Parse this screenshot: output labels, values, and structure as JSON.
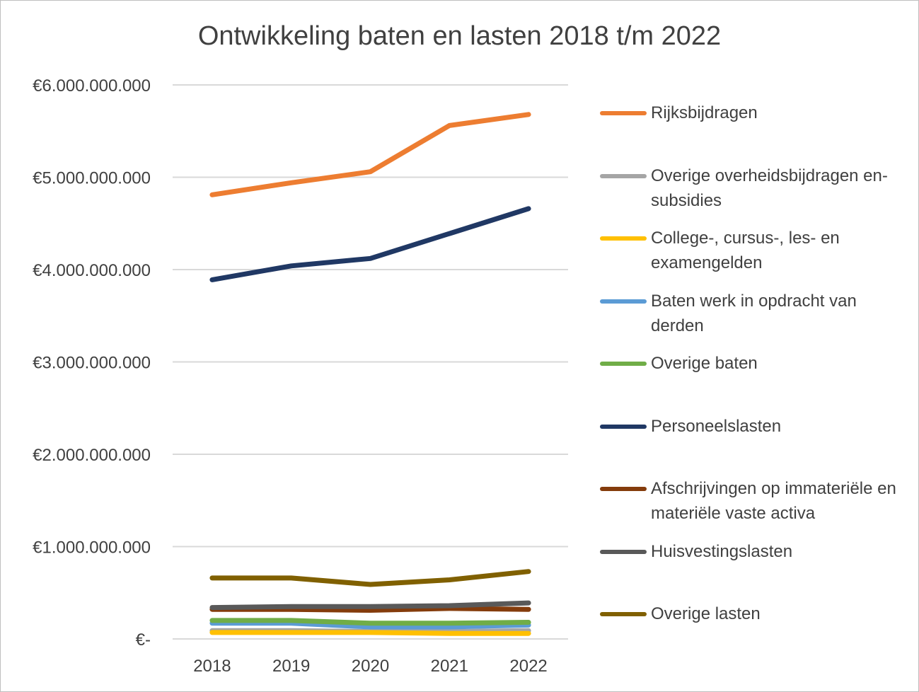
{
  "chart_data": {
    "type": "line",
    "title": "Ontwikkeling baten en lasten 2018 t/m 2022",
    "xlabel": "",
    "ylabel": "",
    "ylim": [
      0,
      6000000000
    ],
    "y_ticks": [
      {
        "value": 0,
        "label": "€-"
      },
      {
        "value": 1000000000,
        "label": "€1.000.000.000"
      },
      {
        "value": 2000000000,
        "label": "€2.000.000.000"
      },
      {
        "value": 3000000000,
        "label": "€3.000.000.000"
      },
      {
        "value": 4000000000,
        "label": "€4.000.000.000"
      },
      {
        "value": 5000000000,
        "label": "€5.000.000.000"
      },
      {
        "value": 6000000000,
        "label": "€6.000.000.000"
      }
    ],
    "categories": [
      "2018",
      "2019",
      "2020",
      "2021",
      "2022"
    ],
    "grid": true,
    "legend_position": "right",
    "series": [
      {
        "name": "Rijksbijdragen",
        "color": "#ED7D31",
        "values": [
          4810000000,
          4940000000,
          5060000000,
          5560000000,
          5680000000
        ]
      },
      {
        "name": "Overige overheidsbijdragen en-subsidies",
        "color": "#A5A5A5",
        "values": [
          90000000,
          90000000,
          80000000,
          80000000,
          90000000
        ]
      },
      {
        "name": "College-, cursus-, les- en examengelden",
        "color": "#FFC000",
        "values": [
          70000000,
          70000000,
          70000000,
          60000000,
          60000000
        ]
      },
      {
        "name": "Baten werk in opdracht van derden",
        "color": "#5B9BD5",
        "values": [
          170000000,
          170000000,
          130000000,
          130000000,
          150000000
        ]
      },
      {
        "name": "Overige baten",
        "color": "#70AD47",
        "values": [
          200000000,
          200000000,
          170000000,
          170000000,
          180000000
        ]
      },
      {
        "name": "Personeelslasten",
        "color": "#203864",
        "values": [
          3890000000,
          4040000000,
          4120000000,
          4390000000,
          4660000000
        ]
      },
      {
        "name": "Afschrijvingen op immateriële en materiële vaste activa",
        "color": "#843C0C",
        "values": [
          320000000,
          320000000,
          310000000,
          330000000,
          320000000
        ]
      },
      {
        "name": "Huisvestingslasten",
        "color": "#595959",
        "values": [
          340000000,
          350000000,
          350000000,
          360000000,
          390000000
        ]
      },
      {
        "name": "Overige lasten",
        "color": "#806000",
        "values": [
          660000000,
          660000000,
          590000000,
          640000000,
          730000000
        ]
      }
    ]
  }
}
